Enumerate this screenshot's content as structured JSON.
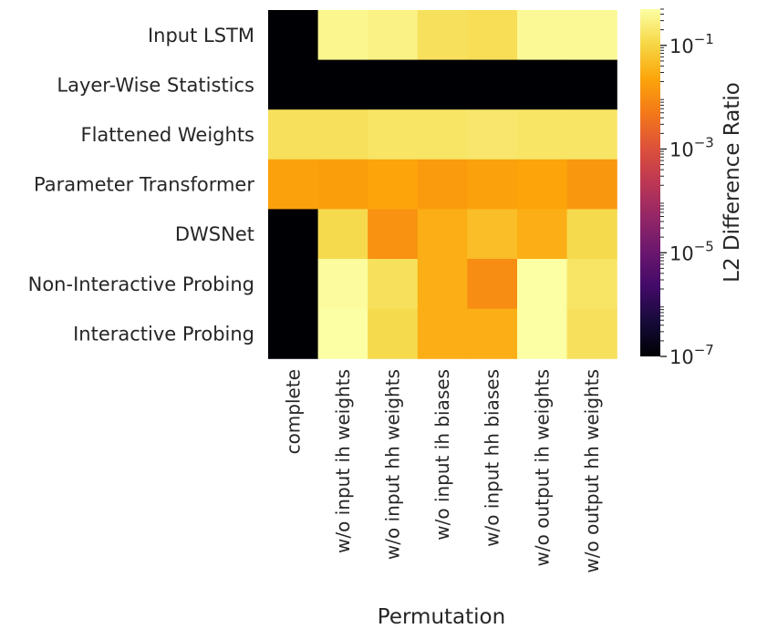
{
  "chart_data": {
    "type": "heatmap",
    "title": "",
    "xlabel": "Permutation",
    "ylabel": "",
    "rows": [
      "Input LSTM",
      "Layer-Wise Statistics",
      "Flattened Weights",
      "Parameter Transformer",
      "DWSNet",
      "Non-Interactive Probing",
      "Interactive Probing"
    ],
    "columns": [
      "complete",
      "w/o input ih weights",
      "w/o input hh weights",
      "w/o input ih biases",
      "w/o input hh biases",
      "w/o output ih weights",
      "w/o output hh weights"
    ],
    "values": [
      [
        1e-07,
        0.35,
        0.3,
        0.15,
        0.14,
        0.4,
        0.4
      ],
      [
        1e-07,
        1e-07,
        1e-07,
        1e-07,
        1e-07,
        1e-07,
        1e-07
      ],
      [
        0.15,
        0.15,
        0.18,
        0.18,
        0.2,
        0.18,
        0.18
      ],
      [
        0.02,
        0.018,
        0.022,
        0.016,
        0.02,
        0.022,
        0.014
      ],
      [
        1e-07,
        0.12,
        0.012,
        0.03,
        0.05,
        0.03,
        0.12
      ],
      [
        1e-07,
        0.45,
        0.15,
        0.03,
        0.01,
        0.55,
        0.18
      ],
      [
        1e-07,
        0.6,
        0.12,
        0.03,
        0.03,
        0.5,
        0.15
      ]
    ],
    "colorscale": "inferno",
    "color_scale_type": "log",
    "colorbar": {
      "label": "L2 Difference Ratio",
      "range": [
        1e-07,
        0.5
      ],
      "ticks": [
        {
          "value": 1e-07,
          "label": "10",
          "exp": "−7"
        },
        {
          "value": 1e-05,
          "label": "10",
          "exp": "−5"
        },
        {
          "value": 0.001,
          "label": "10",
          "exp": "−3"
        },
        {
          "value": 0.1,
          "label": "10",
          "exp": "−1"
        }
      ]
    }
  }
}
